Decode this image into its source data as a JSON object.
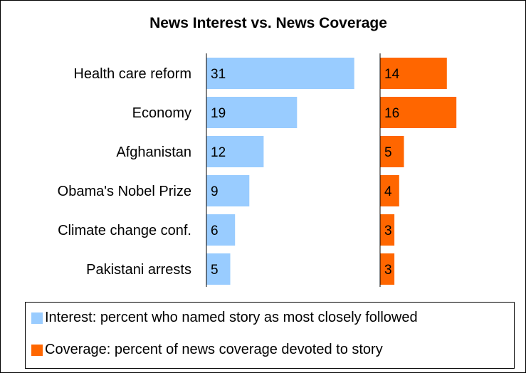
{
  "chart_data": {
    "type": "bar",
    "title": "News Interest vs. News Coverage",
    "categories": [
      "Health care reform",
      "Economy",
      "Afghanistan",
      "Obama's Nobel Prize",
      "Climate change conf.",
      "Pakistani arrests"
    ],
    "series": [
      {
        "name": "Interest: percent who named story as most closely followed",
        "values": [
          31,
          19,
          12,
          9,
          6,
          5
        ],
        "color": "#99ccff"
      },
      {
        "name": "Coverage: percent of news coverage devoted to story",
        "values": [
          14,
          16,
          5,
          4,
          3,
          3
        ],
        "color": "#ff6600"
      }
    ],
    "xlim": [
      0,
      40
    ],
    "grid": false,
    "legend_position": "bottom"
  }
}
